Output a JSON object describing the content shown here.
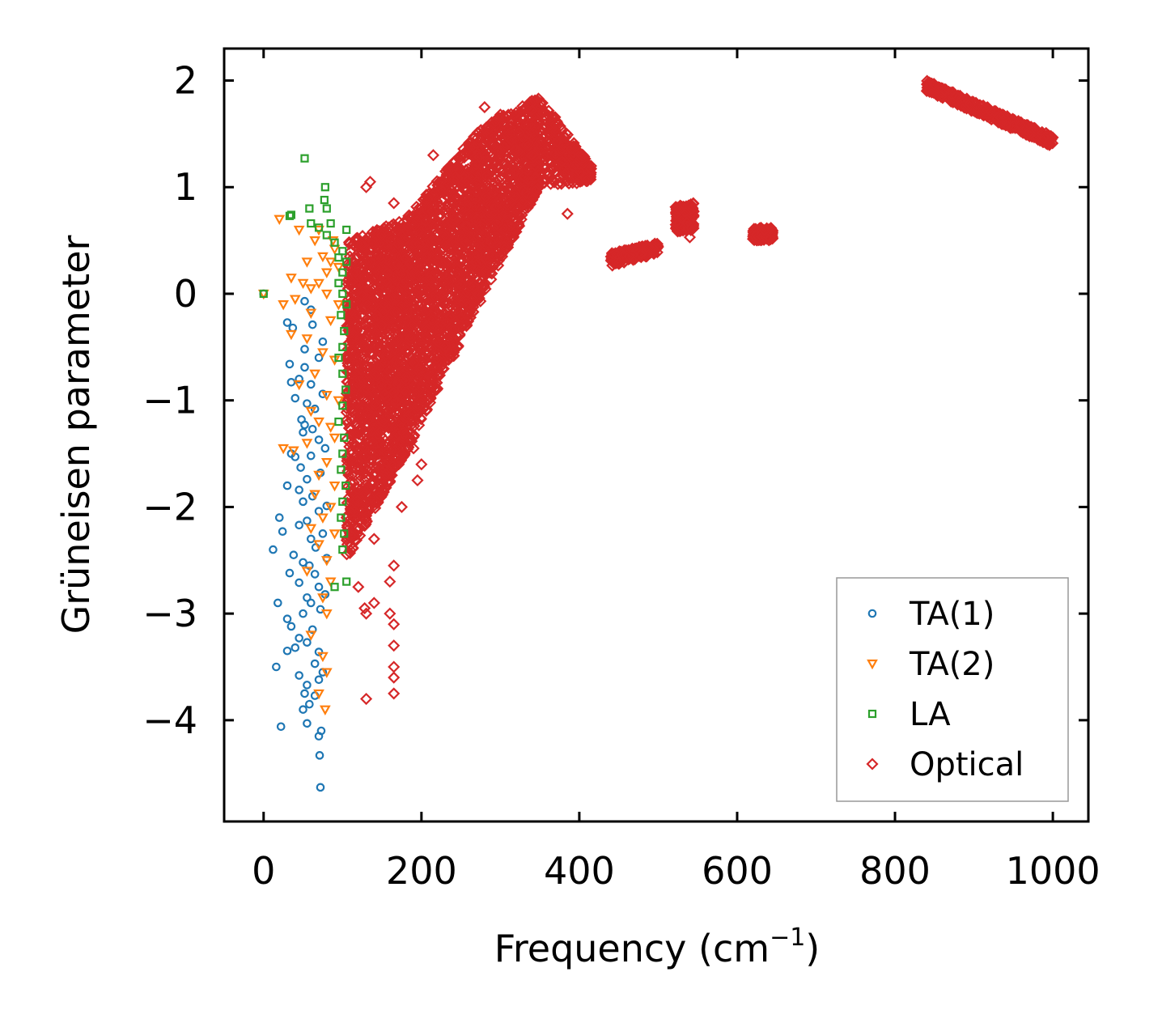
{
  "chart_data": {
    "type": "scatter",
    "title": "",
    "xlabel": "Frequency (cm",
    "xlabel_sup": "−1",
    "xlabel_suffix": ")",
    "ylabel": "Grüneisen parameter",
    "xlim": [
      -50,
      1045
    ],
    "ylim": [
      -4.95,
      2.3
    ],
    "xticks": [
      0,
      200,
      400,
      600,
      800,
      1000
    ],
    "xtick_labels": [
      "0",
      "200",
      "400",
      "600",
      "800",
      "1000"
    ],
    "yticks": [
      2,
      1,
      0,
      -1,
      -2,
      -3,
      -4
    ],
    "ytick_labels": [
      "2",
      "1",
      "0",
      "−1",
      "−2",
      "−3",
      "−4"
    ],
    "legend_position": "lower-right",
    "series": [
      {
        "name": "TA(1)",
        "marker": "circle",
        "color": "#1f77b4",
        "points": [
          [
            0,
            0
          ],
          [
            52,
            -0.07
          ],
          [
            30,
            -0.27
          ],
          [
            37,
            -0.32
          ],
          [
            60,
            -0.15
          ],
          [
            62,
            -0.29
          ],
          [
            52,
            -0.52
          ],
          [
            75,
            -0.45
          ],
          [
            70,
            -0.6
          ],
          [
            33,
            -0.66
          ],
          [
            52,
            -0.69
          ],
          [
            45,
            -0.8
          ],
          [
            60,
            -0.85
          ],
          [
            35,
            -0.83
          ],
          [
            40,
            -0.98
          ],
          [
            55,
            -1.03
          ],
          [
            75,
            -0.94
          ],
          [
            65,
            -1.08
          ],
          [
            48,
            -1.18
          ],
          [
            52,
            -1.23
          ],
          [
            50,
            -1.3
          ],
          [
            62,
            -1.27
          ],
          [
            70,
            -1.37
          ],
          [
            78,
            -1.45
          ],
          [
            35,
            -1.5
          ],
          [
            40,
            -1.53
          ],
          [
            60,
            -1.52
          ],
          [
            47,
            -1.63
          ],
          [
            72,
            -1.68
          ],
          [
            55,
            -1.74
          ],
          [
            30,
            -1.8
          ],
          [
            45,
            -1.84
          ],
          [
            62,
            -1.9
          ],
          [
            50,
            -1.95
          ],
          [
            80,
            -1.99
          ],
          [
            70,
            -2.04
          ],
          [
            20,
            -2.1
          ],
          [
            55,
            -2.13
          ],
          [
            45,
            -2.17
          ],
          [
            24,
            -2.23
          ],
          [
            75,
            -2.25
          ],
          [
            60,
            -2.3
          ],
          [
            66,
            -2.38
          ],
          [
            38,
            -2.45
          ],
          [
            12,
            -2.4
          ],
          [
            50,
            -2.52
          ],
          [
            80,
            -2.48
          ],
          [
            58,
            -2.55
          ],
          [
            33,
            -2.62
          ],
          [
            65,
            -2.63
          ],
          [
            45,
            -2.71
          ],
          [
            70,
            -2.75
          ],
          [
            55,
            -2.85
          ],
          [
            78,
            -2.82
          ],
          [
            60,
            -2.9
          ],
          [
            18,
            -2.9
          ],
          [
            50,
            -3.0
          ],
          [
            30,
            -3.05
          ],
          [
            72,
            -2.96
          ],
          [
            35,
            -3.12
          ],
          [
            62,
            -3.15
          ],
          [
            45,
            -3.23
          ],
          [
            55,
            -3.27
          ],
          [
            40,
            -3.32
          ],
          [
            70,
            -3.36
          ],
          [
            30,
            -3.35
          ],
          [
            65,
            -3.47
          ],
          [
            16,
            -3.5
          ],
          [
            75,
            -3.55
          ],
          [
            45,
            -3.58
          ],
          [
            70,
            -3.62
          ],
          [
            55,
            -3.67
          ],
          [
            65,
            -3.77
          ],
          [
            52,
            -3.75
          ],
          [
            58,
            -3.85
          ],
          [
            50,
            -3.9
          ],
          [
            22,
            -4.06
          ],
          [
            55,
            -4.03
          ],
          [
            73,
            -4.1
          ],
          [
            70,
            -4.15
          ],
          [
            71,
            -4.33
          ],
          [
            72,
            -4.63
          ]
        ]
      },
      {
        "name": "TA(2)",
        "marker": "triangle",
        "color": "#ff7f0e",
        "points": [
          [
            0,
            0
          ],
          [
            25,
            -0.1
          ],
          [
            40,
            -0.05
          ],
          [
            60,
            0.05
          ],
          [
            70,
            0.1
          ],
          [
            80,
            0.2
          ],
          [
            95,
            0.25
          ],
          [
            20,
            0.7
          ],
          [
            45,
            0.6
          ],
          [
            65,
            0.5
          ],
          [
            88,
            0.5
          ],
          [
            70,
            0.6
          ],
          [
            75,
            0.35
          ],
          [
            90,
            0.42
          ],
          [
            85,
            0.3
          ],
          [
            55,
            0.3
          ],
          [
            35,
            0.15
          ],
          [
            50,
            0.1
          ],
          [
            80,
            0.0
          ],
          [
            95,
            -0.1
          ],
          [
            60,
            -0.18
          ],
          [
            85,
            -0.25
          ],
          [
            35,
            -0.38
          ],
          [
            55,
            -0.42
          ],
          [
            75,
            -0.55
          ],
          [
            90,
            -0.62
          ],
          [
            65,
            -0.75
          ],
          [
            45,
            -0.85
          ],
          [
            80,
            -0.95
          ],
          [
            95,
            -1.0
          ],
          [
            60,
            -1.1
          ],
          [
            70,
            -1.2
          ],
          [
            85,
            -1.25
          ],
          [
            90,
            -1.35
          ],
          [
            55,
            -1.4
          ],
          [
            25,
            -1.45
          ],
          [
            38,
            -1.47
          ],
          [
            80,
            -1.58
          ],
          [
            70,
            -1.7
          ],
          [
            90,
            -1.8
          ],
          [
            65,
            -1.88
          ],
          [
            85,
            -2.0
          ],
          [
            75,
            -2.1
          ],
          [
            60,
            -2.2
          ],
          [
            90,
            -2.25
          ],
          [
            70,
            -2.35
          ],
          [
            80,
            -2.5
          ],
          [
            55,
            -2.6
          ],
          [
            85,
            -2.7
          ],
          [
            75,
            -2.85
          ],
          [
            80,
            -3.0
          ],
          [
            60,
            -3.2
          ],
          [
            75,
            -3.4
          ],
          [
            80,
            -3.55
          ],
          [
            70,
            -3.75
          ],
          [
            78,
            -3.9
          ]
        ]
      },
      {
        "name": "LA",
        "marker": "square",
        "color": "#2ca02c",
        "points": [
          [
            0,
            0
          ],
          [
            52,
            1.27
          ],
          [
            78,
            1.0
          ],
          [
            77,
            0.88
          ],
          [
            80,
            0.8
          ],
          [
            58,
            0.8
          ],
          [
            33,
            0.73
          ],
          [
            35,
            0.74
          ],
          [
            60,
            0.66
          ],
          [
            85,
            0.66
          ],
          [
            70,
            0.62
          ],
          [
            105,
            0.6
          ],
          [
            80,
            0.55
          ],
          [
            90,
            0.48
          ],
          [
            100,
            0.4
          ],
          [
            95,
            0.34
          ],
          [
            105,
            0.3
          ],
          [
            100,
            0.2
          ],
          [
            95,
            0.1
          ],
          [
            100,
            0.0
          ],
          [
            105,
            -0.1
          ],
          [
            98,
            -0.2
          ],
          [
            102,
            -0.35
          ],
          [
            100,
            -0.5
          ],
          [
            95,
            -0.6
          ],
          [
            100,
            -0.75
          ],
          [
            104,
            -0.9
          ],
          [
            100,
            -1.05
          ],
          [
            95,
            -1.2
          ],
          [
            102,
            -1.35
          ],
          [
            100,
            -1.5
          ],
          [
            98,
            -1.65
          ],
          [
            104,
            -1.8
          ],
          [
            100,
            -1.95
          ],
          [
            98,
            -2.1
          ],
          [
            102,
            -2.25
          ],
          [
            100,
            -2.4
          ],
          [
            105,
            -2.7
          ],
          [
            90,
            -2.75
          ]
        ]
      },
      {
        "name": "Optical",
        "marker": "diamond",
        "color": "#d62728",
        "clusters": [
          {
            "x": [
              105,
              180
            ],
            "y_lower": [
              -2.5,
              -1.5
            ],
            "y_upper": [
              0.5,
              0.7
            ],
            "density": 1500
          },
          {
            "x": [
              180,
              280
            ],
            "y_lower": [
              -1.5,
              0.0
            ],
            "y_upper": [
              0.7,
              1.6
            ],
            "density": 1400
          },
          {
            "x": [
              280,
              350
            ],
            "y_lower": [
              0.0,
              1.0
            ],
            "y_upper": [
              1.6,
              1.85
            ],
            "density": 700
          },
          {
            "x": [
              350,
              415
            ],
            "y_lower": [
              1.0,
              1.05
            ],
            "y_upper": [
              1.85,
              1.2
            ],
            "density": 300
          },
          {
            "x": [
              440,
              500
            ],
            "y_lower": [
              0.26,
              0.38
            ],
            "y_upper": [
              0.38,
              0.48
            ],
            "density": 180
          },
          {
            "x": [
              522,
              545
            ],
            "y_lower": [
              0.58,
              0.6
            ],
            "y_upper": [
              0.82,
              0.85
            ],
            "density": 160
          },
          {
            "x": [
              620,
              645
            ],
            "y_lower": [
              0.5,
              0.5
            ],
            "y_upper": [
              0.62,
              0.62
            ],
            "density": 120
          },
          {
            "x": [
              840,
              1000
            ],
            "y_lower": [
              1.9,
              1.38
            ],
            "y_upper": [
              2.0,
              1.48
            ],
            "density": 500
          }
        ],
        "points": [
          [
            130,
            -3.8
          ],
          [
            165,
            -3.75
          ],
          [
            165,
            -3.6
          ],
          [
            165,
            -3.5
          ],
          [
            165,
            -3.3
          ],
          [
            165,
            -3.1
          ],
          [
            160,
            -3.0
          ],
          [
            130,
            -3.0
          ],
          [
            128,
            -2.95
          ],
          [
            140,
            -2.9
          ],
          [
            120,
            -2.75
          ],
          [
            160,
            -2.7
          ],
          [
            165,
            -2.55
          ],
          [
            140,
            -2.3
          ],
          [
            175,
            -2.0
          ],
          [
            195,
            -1.75
          ],
          [
            200,
            -1.6
          ],
          [
            175,
            -1.5
          ],
          [
            190,
            -1.45
          ],
          [
            230,
            -0.5
          ],
          [
            250,
            -0.3
          ],
          [
            260,
            -0.2
          ],
          [
            215,
            1.3
          ],
          [
            225,
            1.05
          ],
          [
            130,
            1.0
          ],
          [
            135,
            1.05
          ],
          [
            165,
            0.85
          ],
          [
            280,
            1.75
          ],
          [
            300,
            1.68
          ],
          [
            320,
            1.7
          ],
          [
            340,
            1.72
          ],
          [
            385,
            0.75
          ],
          [
            330,
            1.1
          ],
          [
            320,
            0.9
          ],
          [
            540,
            0.53
          ]
        ]
      }
    ]
  }
}
